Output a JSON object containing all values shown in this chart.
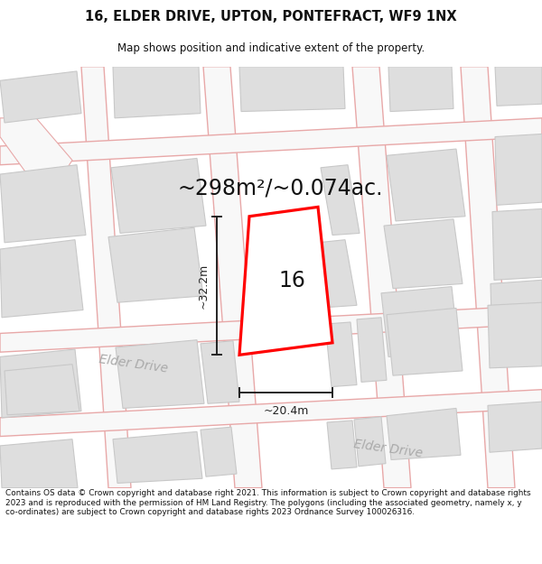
{
  "title": "16, ELDER DRIVE, UPTON, PONTEFRACT, WF9 1NX",
  "subtitle": "Map shows position and indicative extent of the property.",
  "area_text": "~298m²/~0.074ac.",
  "house_number": "16",
  "dim_width": "~20.4m",
  "dim_height": "~32.2m",
  "footer": "Contains OS data © Crown copyright and database right 2021. This information is subject to Crown copyright and database rights 2023 and is reproduced with the permission of HM Land Registry. The polygons (including the associated geometry, namely x, y co-ordinates) are subject to Crown copyright and database rights 2023 Ordnance Survey 100026316.",
  "bg_color": "#f2f2f2",
  "road_color": "#e8a8a8",
  "road_fill": "#f8f8f8",
  "building_color": "#dedede",
  "building_edge": "#c8c8c8",
  "plot_color": "#ff0000",
  "plot_fill": "#ffffff",
  "road_label_color": "#aaaaaa",
  "dim_line_color": "#222222",
  "title_color": "#111111",
  "footer_color": "#111111",
  "map_xlim": [
    0,
    600
  ],
  "map_ylim": [
    0,
    450
  ]
}
